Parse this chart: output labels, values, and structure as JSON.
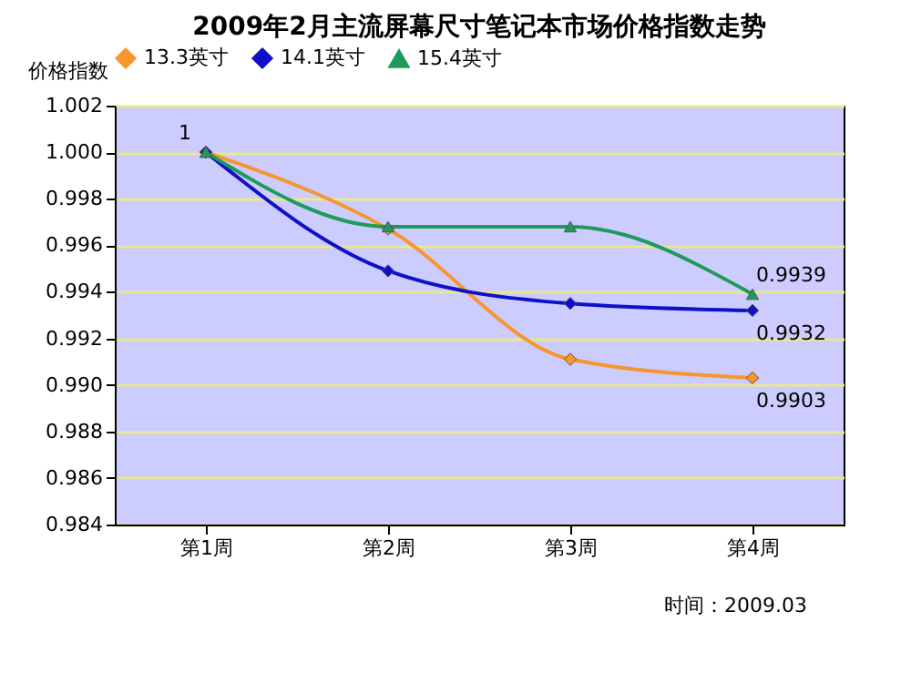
{
  "chart_data": {
    "type": "line",
    "title": "2009年2月主流屏幕尺寸笔记本市场价格指数走势",
    "ylabel": "价格指数",
    "categories": [
      "第1周",
      "第2周",
      "第3周",
      "第4周"
    ],
    "series": [
      {
        "name": "13.3英寸",
        "color": "#f7962f",
        "marker": "diamond",
        "values": [
          1.0,
          0.9967,
          0.9911,
          0.9903
        ],
        "value_labels": [
          null,
          null,
          null,
          "0.9903"
        ]
      },
      {
        "name": "14.1英寸",
        "color": "#1010c8",
        "marker": "diamond",
        "values": [
          1.0,
          0.9949,
          0.9935,
          0.9932
        ],
        "value_labels": [
          null,
          null,
          null,
          "0.9932"
        ]
      },
      {
        "name": "15.4英寸",
        "color": "#1f9a5a",
        "marker": "triangle",
        "values": [
          1.0,
          0.9968,
          0.9968,
          0.9939
        ],
        "value_labels": [
          "1",
          null,
          null,
          "0.9939"
        ]
      }
    ],
    "ylim": [
      0.984,
      1.002
    ],
    "yticks": [
      {
        "value": 0.984,
        "label": "0.984"
      },
      {
        "value": 0.986,
        "label": "0.986"
      },
      {
        "value": 0.988,
        "label": "0.988"
      },
      {
        "value": 0.99,
        "label": "0.990"
      },
      {
        "value": 0.992,
        "label": "0.992"
      },
      {
        "value": 0.994,
        "label": "0.994"
      },
      {
        "value": 0.996,
        "label": "0.996"
      },
      {
        "value": 0.998,
        "label": "0.998"
      },
      {
        "value": 1.0,
        "label": "1.000"
      },
      {
        "value": 1.002,
        "label": "1.002"
      }
    ],
    "grid": "y",
    "legend": "top",
    "line_style": "solid",
    "annotations": [
      "时间：2009.03"
    ]
  }
}
